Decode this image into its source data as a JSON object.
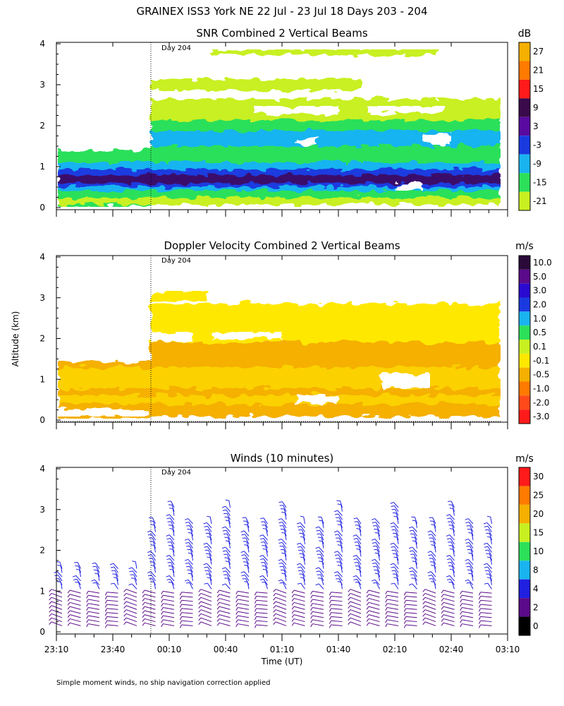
{
  "page": {
    "title": "GRAINEX ISS3 York NE  22 Jul - 23 Jul 18 Days 203 - 204",
    "y_axis_label": "Altitude (km)",
    "x_axis_label": "Time (UT)",
    "footnote": "Simple moment winds, no ship navigation correction applied",
    "day_marker": "Day 204"
  },
  "colors": {
    "white_bg": "#ffffff",
    "snr_deep": "#3a0a6a",
    "snr_blue": "#1a3ae0",
    "snr_cyan": "#19b4f0",
    "snr_green": "#2ce05a",
    "snr_lime": "#c8f020",
    "vel_orange": "#f5b000",
    "vel_yellow": "#ffe800",
    "wind_blue": "#2020e0",
    "wind_purple": "#5a0a8a"
  },
  "chart_data": [
    {
      "type": "heatmap",
      "title": "SNR Combined 2 Vertical Beams",
      "xlabel": "Time (UT)",
      "ylabel": "Altitude (km)",
      "ylim": [
        0,
        4
      ],
      "xlim": [
        "23:10",
        "03:10"
      ],
      "x_ticks": [
        "23:10",
        "23:40",
        "00:10",
        "00:40",
        "01:10",
        "01:40",
        "02:10",
        "02:40",
        "03:10"
      ],
      "y_ticks": [
        "0",
        "1",
        "2",
        "3",
        "4"
      ],
      "annotation": "Day 204",
      "colorbar": {
        "unit": "dB",
        "labels": [
          "27",
          "21",
          "15",
          "9",
          "3",
          "-3",
          "-9",
          "-15",
          "-21"
        ],
        "colors": [
          "#f5b000",
          "#ff7a00",
          "#ff1a1a",
          "#3a0a4a",
          "#5a0aa0",
          "#1a3ae0",
          "#19b4f0",
          "#2ce05a",
          "#c8f020"
        ]
      }
    },
    {
      "type": "heatmap",
      "title": "Doppler Velocity Combined 2 Vertical Beams",
      "xlabel": "Time (UT)",
      "ylabel": "Altitude (km)",
      "ylim": [
        0,
        4
      ],
      "y_ticks": [
        "0",
        "1",
        "2",
        "3",
        "4"
      ],
      "annotation": "Day 204",
      "colorbar": {
        "unit": "m/s",
        "labels": [
          "10.0",
          "5.0",
          "3.0",
          "2.0",
          "1.0",
          "0.5",
          "0.1",
          "-0.1",
          "-0.5",
          "-1.0",
          "-2.0",
          "-3.0"
        ],
        "colors": [
          "#2a0a3a",
          "#5a0a8a",
          "#2a0ad0",
          "#1a3ae0",
          "#19b4f0",
          "#2ce05a",
          "#c8f020",
          "#ffe800",
          "#f5b000",
          "#ff7a00",
          "#ff4a1a",
          "#ff1a1a"
        ]
      }
    },
    {
      "type": "scatter",
      "title": "Winds (10 minutes)",
      "xlabel": "Time (UT)",
      "ylabel": "Altitude (km)",
      "ylim": [
        0,
        4
      ],
      "y_ticks": [
        "0",
        "1",
        "2",
        "3",
        "4"
      ],
      "annotation": "Day 204",
      "colorbar": {
        "unit": "m/s",
        "labels": [
          "30",
          "25",
          "20",
          "15",
          "10",
          "8",
          "4",
          "2",
          "0"
        ],
        "colors": [
          "#ff1a1a",
          "#ff7a00",
          "#f5b000",
          "#c8f020",
          "#2ce05a",
          "#19b4f0",
          "#2020e0",
          "#5a0a8a",
          "#000000"
        ]
      }
    }
  ]
}
